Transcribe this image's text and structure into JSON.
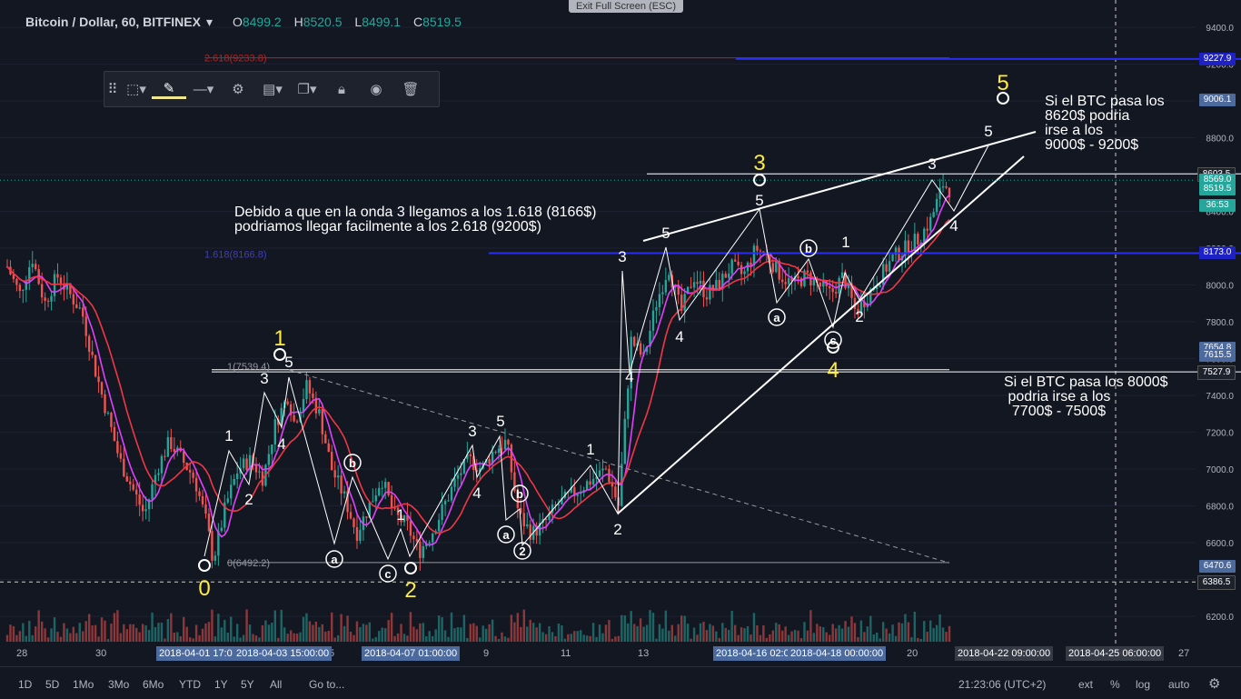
{
  "header": {
    "symbol": "Bitcoin / Dollar, 60, BITFINEX",
    "o_label": "O",
    "o": "8499.2",
    "h_label": "H",
    "h": "8520.5",
    "l_label": "L",
    "l": "8499.1",
    "c_label": "C",
    "c": "8519.5"
  },
  "exit_fullscreen": "Exit Full Screen (ESC)",
  "toolbar_icons": [
    "drag-handle-icon",
    "rectangle-select-icon",
    "pencil-icon",
    "line-style-icon",
    "gear-icon",
    "layers-icon",
    "copy-icon",
    "lock-icon",
    "eye-icon",
    "trash-icon"
  ],
  "annotations": {
    "text1": "Debido a que en la onda 3 llegamos a los 1.618 (8166$)\npodriamos llegar facilmente a los 2.618 (9200$)",
    "text2": "Si el BTC pasa los\n8620$ podria\nirse a los\n9000$ - 9200$",
    "text3": "Si el BTC pasa los 8000$\n podria irse a los\n  7700$ - 7500$"
  },
  "fib_labels": {
    "fib_2618": "2.618(9233.8)",
    "fib_1618": "1.618(8166.8)",
    "fib_1": "1(7539.4)",
    "fib_0": "0(6492.2)"
  },
  "price_labels": [
    {
      "value": "9227.9",
      "color": "#1e22c6"
    },
    {
      "value": "9006.1",
      "color": "#4c6a9e"
    },
    {
      "value": "8603.5",
      "color": "#1e222d"
    },
    {
      "value": "8569.0",
      "color": "#26a69a"
    },
    {
      "value": "8519.5",
      "color": "#26a69a"
    },
    {
      "value": "36:53",
      "color": "#26a69a"
    },
    {
      "value": "8173.0",
      "color": "#1e22c6"
    },
    {
      "value": "7654.8",
      "color": "#4c6a9e"
    },
    {
      "value": "7615.5",
      "color": "#4c6a9e"
    },
    {
      "value": "7527.9",
      "color": "#1e222d"
    },
    {
      "value": "6470.6",
      "color": "#4c6a9e"
    },
    {
      "value": "6386.5",
      "color": "#1e222d"
    }
  ],
  "y_ticks": [
    "9400.0",
    "9200.0",
    "9000.0",
    "8800.0",
    "8600.0",
    "8400.0",
    "8200.0",
    "8000.0",
    "7800.0",
    "7600.0",
    "7400.0",
    "7200.0",
    "7000.0",
    "6800.0",
    "6600.0",
    "6400.0",
    "6200.0"
  ],
  "x_ticks": [
    "28",
    "30",
    "5",
    "9",
    "11",
    "13",
    "20",
    "27"
  ],
  "date_boxes": [
    "2018-04-01 17:0",
    "2018-04-03 15:00:00",
    "2018-04-07 01:00:00",
    "2018-04-16 02:0",
    "2018-04-18 00:00:00",
    "2018-04-22 09:00:00",
    "2018-04-25 06:00:00"
  ],
  "wave_labels_yellow": [
    "0",
    "1",
    "2",
    "3",
    "4",
    "5"
  ],
  "wave_labels_white": [
    "1",
    "2",
    "3",
    "4",
    "5",
    "a",
    "b",
    "c"
  ],
  "bottom": {
    "ranges": [
      "1D",
      "5D",
      "1Mo",
      "3Mo",
      "6Mo",
      "YTD",
      "1Y",
      "5Y",
      "All"
    ],
    "goto": "Go to...",
    "time": "21:23:06 (UTC+2)",
    "ext": "ext",
    "pct": "%",
    "log": "log",
    "auto": "auto"
  },
  "chart_data": {
    "type": "candlestick",
    "title": "Bitcoin / Dollar, 60, BITFINEX",
    "ylim": [
      6100,
      9500
    ],
    "key_prices": {
      "low_wave0": 6492.2,
      "wave1_top": 7539.4,
      "fib_1618": 8166.8,
      "fib_2618": 9233.8,
      "target_5": 9006.1,
      "resistance": 8603.5,
      "last": 8519.5
    },
    "series": [
      {
        "name": "price",
        "points": [
          [
            0,
            8100
          ],
          [
            2,
            7950
          ],
          [
            4,
            8150
          ],
          [
            6,
            7900
          ],
          [
            8,
            8050
          ],
          [
            10,
            7950
          ],
          [
            12,
            7850
          ],
          [
            14,
            7550
          ],
          [
            16,
            7300
          ],
          [
            18,
            7050
          ],
          [
            20,
            6900
          ],
          [
            22,
            6750
          ],
          [
            24,
            7000
          ],
          [
            26,
            7150
          ],
          [
            28,
            7050
          ],
          [
            30,
            6950
          ],
          [
            32,
            6700
          ],
          [
            33,
            6500
          ],
          [
            35,
            6800
          ],
          [
            37,
            7000
          ],
          [
            39,
            7050
          ],
          [
            41,
            6950
          ],
          [
            43,
            7250
          ],
          [
            45,
            7400
          ],
          [
            46,
            7250
          ],
          [
            48,
            7450
          ],
          [
            50,
            7300
          ],
          [
            52,
            7000
          ],
          [
            54,
            6850
          ],
          [
            56,
            6650
          ],
          [
            58,
            6800
          ],
          [
            60,
            6950
          ],
          [
            62,
            6750
          ],
          [
            64,
            6700
          ],
          [
            66,
            6550
          ],
          [
            68,
            6650
          ],
          [
            70,
            6800
          ],
          [
            72,
            6950
          ],
          [
            74,
            7050
          ],
          [
            76,
            7000
          ],
          [
            78,
            7100
          ],
          [
            80,
            7150
          ],
          [
            82,
            6750
          ],
          [
            84,
            6650
          ],
          [
            86,
            6700
          ],
          [
            88,
            6800
          ],
          [
            90,
            6850
          ],
          [
            92,
            6900
          ],
          [
            94,
            6950
          ],
          [
            96,
            7000
          ],
          [
            98,
            6800
          ],
          [
            100,
            7700
          ],
          [
            102,
            7600
          ],
          [
            104,
            7900
          ],
          [
            106,
            8100
          ],
          [
            108,
            7850
          ],
          [
            110,
            8050
          ],
          [
            112,
            7950
          ],
          [
            114,
            8000
          ],
          [
            116,
            8100
          ],
          [
            118,
            8050
          ],
          [
            120,
            8200
          ],
          [
            122,
            8150
          ],
          [
            124,
            8050
          ],
          [
            126,
            8000
          ],
          [
            128,
            8050
          ],
          [
            130,
            8000
          ],
          [
            132,
            7950
          ],
          [
            134,
            8050
          ],
          [
            136,
            7850
          ],
          [
            138,
            7950
          ],
          [
            140,
            8050
          ],
          [
            142,
            8150
          ],
          [
            144,
            8200
          ],
          [
            146,
            8250
          ],
          [
            148,
            8350
          ],
          [
            150,
            8550
          ],
          [
            151,
            8519.5
          ]
        ]
      }
    ]
  }
}
